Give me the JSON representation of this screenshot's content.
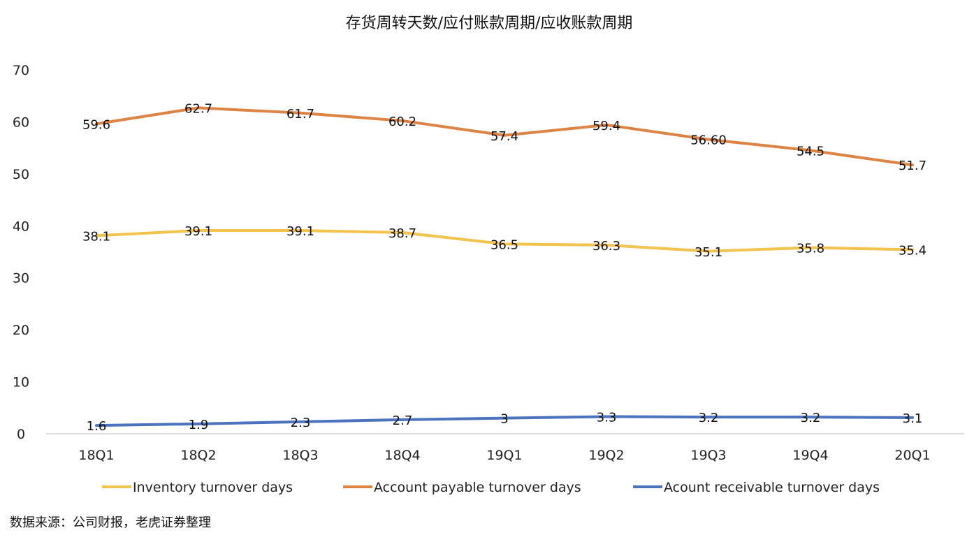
{
  "chart_data": {
    "type": "line",
    "title": "存货周转天数/应付账款周期/应收账款周期",
    "categories": [
      "18Q1",
      "18Q2",
      "18Q3",
      "18Q4",
      "19Q1",
      "19Q2",
      "19Q3",
      "19Q4",
      "20Q1"
    ],
    "ylim": [
      0,
      70
    ],
    "yticks": [
      0,
      10,
      20,
      30,
      40,
      50,
      60,
      70
    ],
    "grid": false,
    "legend_position": "bottom",
    "series": [
      {
        "name": "Inventory turnover days",
        "color": "#F2C44E",
        "values": [
          38.1,
          39.1,
          39.1,
          38.7,
          36.5,
          36.3,
          35.1,
          35.8,
          35.4
        ],
        "labels": [
          "38.1",
          "39.1",
          "39.1",
          "38.7",
          "36.5",
          "36.3",
          "35.1",
          "35.8",
          "35.4"
        ]
      },
      {
        "name": "Account payable turnover days",
        "color": "#DD8444",
        "values": [
          59.6,
          62.7,
          61.7,
          60.2,
          57.4,
          59.4,
          56.6,
          54.5,
          51.7
        ],
        "labels": [
          "59.6",
          "62.7",
          "61.7",
          "60.2",
          "57.4",
          "59.4",
          "56.60",
          "54.5",
          "51.7"
        ]
      },
      {
        "name": "Acount receivable turnover days",
        "color": "#4C73BE",
        "values": [
          1.6,
          1.9,
          2.3,
          2.7,
          3.0,
          3.3,
          3.2,
          3.2,
          3.1
        ],
        "labels": [
          "1.6",
          "1.9",
          "2.3",
          "2.7",
          "3",
          "3.3",
          "3.2",
          "3.2",
          "3.1"
        ]
      }
    ],
    "source_note": "数据来源：公司财报，老虎证券整理"
  }
}
